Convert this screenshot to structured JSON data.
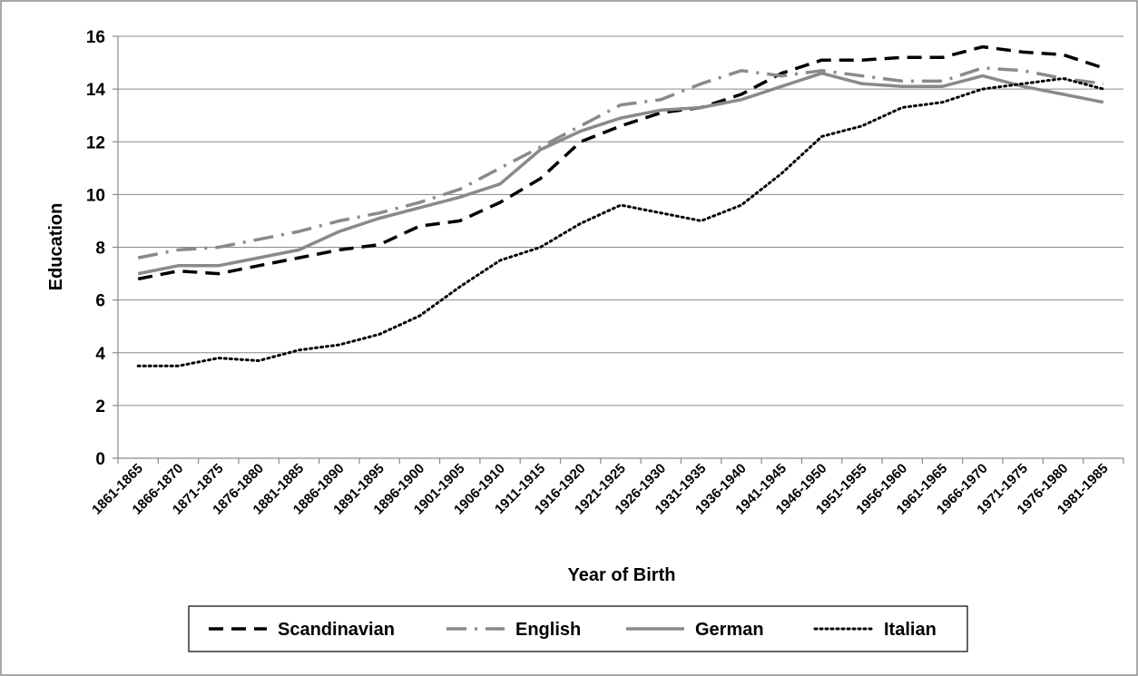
{
  "chart_data": {
    "type": "line",
    "title": "",
    "xlabel": "Year of Birth",
    "ylabel": "Education",
    "ylim": [
      0,
      16
    ],
    "yticks": [
      0,
      2,
      4,
      6,
      8,
      10,
      12,
      14,
      16
    ],
    "grid": "horizontal",
    "legend_position": "bottom",
    "categories": [
      "1861-1865",
      "1866-1870",
      "1871-1875",
      "1876-1880",
      "1881-1885",
      "1886-1890",
      "1891-1895",
      "1896-1900",
      "1901-1905",
      "1906-1910",
      "1911-1915",
      "1916-1920",
      "1921-1925",
      "1926-1930",
      "1931-1935",
      "1936-1940",
      "1941-1945",
      "1946-1950",
      "1951-1955",
      "1956-1960",
      "1961-1965",
      "1966-1970",
      "1971-1975",
      "1976-1980",
      "1981-1985"
    ],
    "series": [
      {
        "name": "Scandinavian",
        "style": "dashed",
        "color": "#000000",
        "values": [
          6.8,
          7.1,
          7.0,
          7.3,
          7.6,
          7.9,
          8.1,
          8.8,
          9.0,
          9.7,
          10.6,
          12.0,
          12.6,
          13.1,
          13.3,
          13.8,
          14.6,
          15.1,
          15.1,
          15.2,
          15.2,
          15.6,
          15.4,
          15.3,
          14.8
        ]
      },
      {
        "name": "English",
        "style": "dash-dot",
        "color": "#8a8a8a",
        "values": [
          7.6,
          7.9,
          8.0,
          8.3,
          8.6,
          9.0,
          9.3,
          9.7,
          10.2,
          11.0,
          11.8,
          12.6,
          13.4,
          13.6,
          14.2,
          14.7,
          14.5,
          14.7,
          14.5,
          14.3,
          14.3,
          14.8,
          14.7,
          14.4,
          14.2
        ]
      },
      {
        "name": "German",
        "style": "solid",
        "color": "#8a8a8a",
        "values": [
          7.0,
          7.3,
          7.3,
          7.6,
          7.9,
          8.6,
          9.1,
          9.5,
          9.9,
          10.4,
          11.7,
          12.4,
          12.9,
          13.2,
          13.3,
          13.6,
          14.1,
          14.6,
          14.2,
          14.1,
          14.1,
          14.5,
          14.1,
          13.8,
          13.5
        ]
      },
      {
        "name": "Italian",
        "style": "dotted",
        "color": "#000000",
        "values": [
          3.5,
          3.5,
          3.8,
          3.7,
          4.1,
          4.3,
          4.7,
          5.4,
          6.5,
          7.5,
          8.0,
          8.9,
          9.6,
          9.3,
          9.0,
          9.6,
          10.8,
          12.2,
          12.6,
          13.3,
          13.5,
          14.0,
          14.2,
          14.4,
          14.0
        ]
      }
    ]
  }
}
